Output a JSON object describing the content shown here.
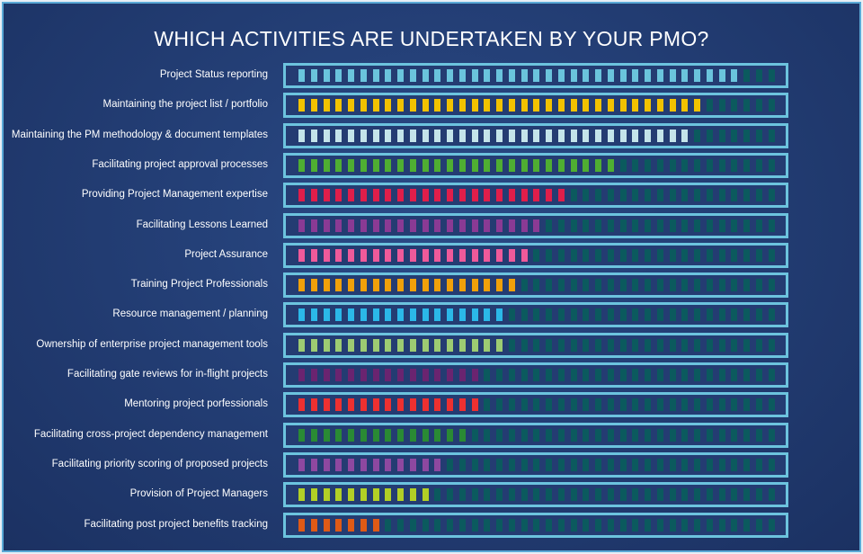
{
  "chart_data": {
    "type": "bar",
    "title": "WHICH ACTIVITIES ARE UNDERTAKEN BY YOUR PMO?",
    "total_segments": 39,
    "empty_segment_color": "#0b5a5e",
    "categories": [
      "Project Status reporting",
      "Maintaining the project list / portfolio",
      "Maintaining the PM methodology & document templates",
      "Facilitating project approval processes",
      "Providing Project Management expertise",
      "Facilitating Lessons Learned",
      "Project Assurance",
      "Training Project Professionals",
      "Resource management / planning",
      "Ownership of enterprise project management tools",
      "Facilitating gate reviews for in-flight projects",
      "Mentoring project porfessionals",
      "Facilitating cross-project dependency management",
      "Facilitating priority scoring of proposed projects",
      "Provision of Project Managers",
      "Facilitating post project benefits tracking"
    ],
    "values": [
      36,
      33,
      32,
      26,
      22,
      20,
      19,
      18,
      17,
      17,
      15,
      15,
      14,
      12,
      11,
      7
    ],
    "colors": [
      "#6ac4dc",
      "#f2c200",
      "#c4e4ea",
      "#4fae32",
      "#e01e4a",
      "#8a3a94",
      "#ef5a9a",
      "#f0a00a",
      "#2bb8e8",
      "#9dcb72",
      "#6a2470",
      "#ee3030",
      "#2a8a34",
      "#8e48a0",
      "#b2cf26",
      "#e05a16"
    ]
  }
}
